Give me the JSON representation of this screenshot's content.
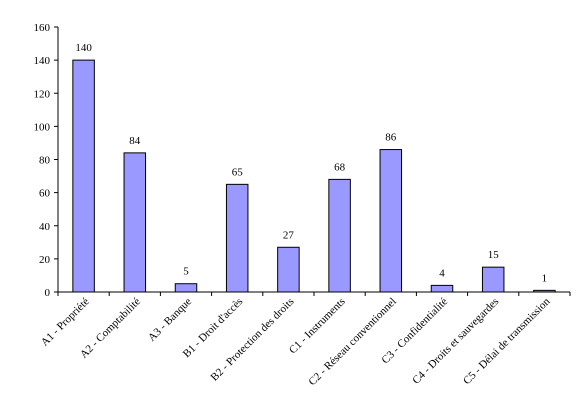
{
  "chart_data": {
    "type": "bar",
    "title": "",
    "xlabel": "",
    "ylabel": "",
    "ylim": [
      0,
      160
    ],
    "yticks": [
      0,
      20,
      40,
      60,
      80,
      100,
      120,
      140,
      160
    ],
    "grid": false,
    "categories": [
      "A1 - Propriété",
      "A2 - Comptabilité",
      "A3 - Banque",
      "B1 - Droit d'accès",
      "B2 - Protection des droits",
      "C1 - Instruments",
      "C2 - Réseau conventionnel",
      "C3 - Confidentialité",
      "C4 - Droits et sauvegardes",
      "C5 - Délai de transmission"
    ],
    "values": [
      140,
      84,
      5,
      65,
      27,
      68,
      86,
      4,
      15,
      1
    ],
    "bar_color": "#9999ff",
    "bar_edge_color": "#000000"
  }
}
